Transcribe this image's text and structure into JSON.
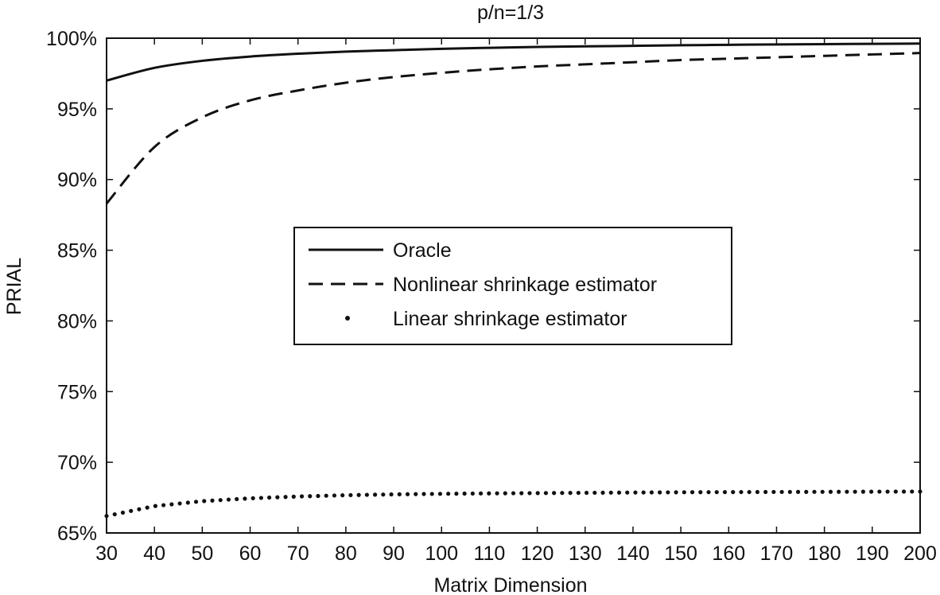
{
  "chart_data": {
    "type": "line",
    "title": "p/n=1/3",
    "xlabel": "Matrix Dimension",
    "ylabel": "PRIAL",
    "xlim": [
      30,
      200
    ],
    "ylim": [
      65,
      100
    ],
    "xticks": [
      30,
      40,
      50,
      60,
      70,
      80,
      90,
      100,
      110,
      120,
      130,
      140,
      150,
      160,
      170,
      180,
      190,
      200
    ],
    "yticks": [
      65,
      70,
      75,
      80,
      85,
      90,
      95,
      100
    ],
    "ytick_labels": [
      "65%",
      "70%",
      "75%",
      "80%",
      "85%",
      "90%",
      "95%",
      "100%"
    ],
    "grid": false,
    "legend_position": "center-left",
    "x": [
      30,
      40,
      50,
      60,
      70,
      80,
      90,
      100,
      110,
      120,
      130,
      140,
      150,
      160,
      170,
      180,
      190,
      200
    ],
    "series": [
      {
        "name": "Oracle",
        "style": "solid",
        "values": [
          97.0,
          97.9,
          98.4,
          98.7,
          98.9,
          99.05,
          99.15,
          99.25,
          99.32,
          99.38,
          99.42,
          99.46,
          99.5,
          99.53,
          99.56,
          99.58,
          99.6,
          99.62
        ]
      },
      {
        "name": "Nonlinear shrinkage estimator",
        "style": "dashed",
        "values": [
          88.3,
          92.3,
          94.4,
          95.6,
          96.3,
          96.85,
          97.25,
          97.55,
          97.8,
          98.0,
          98.15,
          98.3,
          98.45,
          98.55,
          98.65,
          98.75,
          98.85,
          98.95
        ]
      },
      {
        "name": "Linear shrinkage estimator",
        "style": "dotted",
        "values": [
          66.2,
          66.9,
          67.25,
          67.45,
          67.58,
          67.67,
          67.73,
          67.77,
          67.8,
          67.82,
          67.84,
          67.86,
          67.88,
          67.89,
          67.9,
          67.91,
          67.92,
          67.93
        ]
      }
    ]
  },
  "colors": {
    "line": "#111111",
    "background": "#ffffff"
  }
}
